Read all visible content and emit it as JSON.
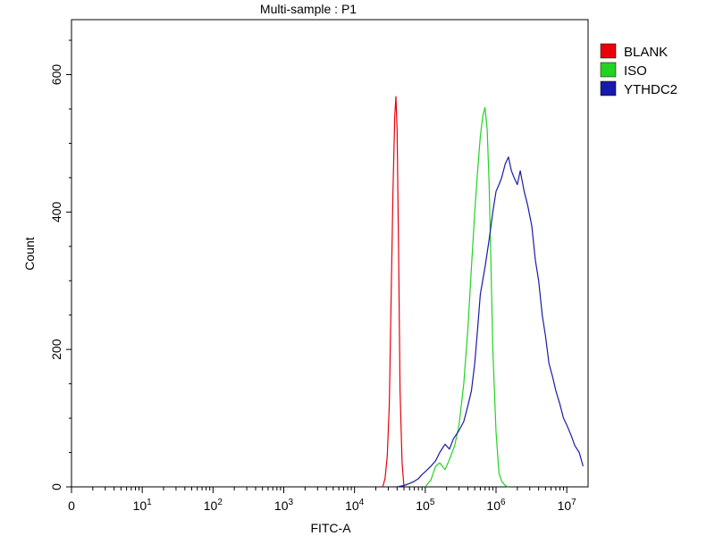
{
  "chart_data": {
    "type": "line",
    "title": "Multi-sample : P1",
    "xlabel": "FITC-A",
    "ylabel": "Count",
    "x_scale": "log",
    "xlim": [
      1,
      20000000
    ],
    "ylim": [
      0,
      680
    ],
    "y_ticks": [
      {
        "value": 0,
        "label": "0"
      },
      {
        "value": 200,
        "label": "200"
      },
      {
        "value": 400,
        "label": "400"
      },
      {
        "value": 600,
        "label": "600"
      }
    ],
    "x_ticks": [
      {
        "value": 1,
        "base": "0",
        "exp": ""
      },
      {
        "value": 10,
        "base": "10",
        "exp": "1"
      },
      {
        "value": 100,
        "base": "10",
        "exp": "2"
      },
      {
        "value": 1000,
        "base": "10",
        "exp": "3"
      },
      {
        "value": 10000,
        "base": "10",
        "exp": "4"
      },
      {
        "value": 100000,
        "base": "10",
        "exp": "5"
      },
      {
        "value": 1000000,
        "base": "10",
        "exp": "6"
      },
      {
        "value": 10000000,
        "base": "10",
        "exp": "7"
      }
    ],
    "legend_position": "top-right",
    "series": [
      {
        "name": "BLANK",
        "color": "#e8000b",
        "x": [
          25000,
          27000,
          29000,
          31000,
          33000,
          35000,
          37000,
          38500,
          40000,
          42000,
          44000,
          47000,
          50000
        ],
        "values": [
          0,
          12,
          45,
          120,
          280,
          430,
          540,
          568,
          520,
          340,
          140,
          35,
          0
        ]
      },
      {
        "name": "ISO",
        "color": "#22d322",
        "x": [
          100000,
          120000,
          140000,
          160000,
          190000,
          220000,
          260000,
          300000,
          350000,
          400000,
          450000,
          500000,
          550000,
          600000,
          650000,
          700000,
          750000,
          800000,
          850000,
          900000,
          1000000,
          1100000,
          1200000,
          1350000,
          1500000
        ],
        "values": [
          0,
          10,
          30,
          35,
          25,
          40,
          60,
          90,
          150,
          230,
          320,
          400,
          460,
          510,
          540,
          552,
          520,
          440,
          320,
          200,
          80,
          20,
          8,
          2,
          0
        ]
      },
      {
        "name": "YTHDC2",
        "color": "#1a1aa8",
        "x": [
          40000,
          50000,
          60000,
          70000,
          80000,
          90000,
          100000,
          120000,
          140000,
          160000,
          190000,
          220000,
          250000,
          300000,
          350000,
          400000,
          450000,
          500000,
          550000,
          600000,
          700000,
          800000,
          900000,
          1000000,
          1100000,
          1200000,
          1350000,
          1500000,
          1650000,
          1800000,
          2000000,
          2200000,
          2500000,
          2800000,
          3200000,
          3600000,
          4000000,
          4500000,
          5000000,
          5600000,
          6300000,
          7000000,
          8000000,
          9000000,
          10000000,
          11500000,
          13000000,
          15000000,
          17000000
        ],
        "values": [
          0,
          2,
          5,
          8,
          12,
          18,
          22,
          30,
          38,
          50,
          62,
          55,
          70,
          82,
          95,
          118,
          140,
          180,
          230,
          280,
          320,
          360,
          400,
          430,
          440,
          450,
          470,
          480,
          460,
          450,
          440,
          460,
          430,
          410,
          380,
          330,
          300,
          250,
          220,
          180,
          160,
          140,
          120,
          100,
          90,
          75,
          60,
          50,
          30
        ]
      }
    ]
  }
}
